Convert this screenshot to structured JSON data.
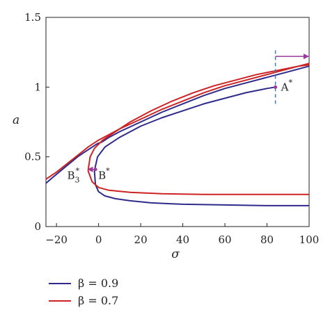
{
  "chart_data": {
    "type": "line",
    "xlabel": "σ",
    "ylabel": "a",
    "xlim": [
      -25,
      100
    ],
    "ylim": [
      0,
      1.5
    ],
    "xticks": [
      -20,
      0,
      20,
      40,
      60,
      80,
      100
    ],
    "yticks": [
      0,
      0.5,
      1,
      1.5
    ],
    "ytick_labels": [
      "0",
      "0.5",
      "1",
      "1.5"
    ],
    "grid": false,
    "legend_position": "bottom-left",
    "series": [
      {
        "name": "β = 0.9",
        "color": "#2e2a8c",
        "branches": [
          {
            "x": [
              -25,
              -22,
              -18,
              -14,
              -10,
              -7,
              -4,
              -2,
              -0.5,
              0.5,
              1.5
            ],
            "y": [
              0.31,
              0.35,
              0.4,
              0.45,
              0.5,
              0.53,
              0.56,
              0.58,
              0.595,
              0.6,
              0.605
            ]
          },
          {
            "x": [
              -1.5,
              -2,
              -0.5,
              3,
              10,
              20,
              30,
              40,
              50,
              60,
              70,
              80,
              84
            ],
            "y": [
              0.3,
              0.4,
              0.5,
              0.57,
              0.64,
              0.72,
              0.78,
              0.83,
              0.88,
              0.92,
              0.96,
              0.99,
              1.0
            ]
          },
          {
            "x": [
              -1.5,
              0,
              3,
              8,
              15,
              25,
              40,
              60,
              80,
              100
            ],
            "y": [
              0.3,
              0.25,
              0.22,
              0.2,
              0.185,
              0.17,
              0.16,
              0.155,
              0.15,
              0.15
            ]
          },
          {
            "x": [
              1.5,
              5,
              10,
              20,
              30,
              40,
              50,
              60,
              70,
              80,
              90,
              100
            ],
            "y": [
              0.605,
              0.64,
              0.68,
              0.75,
              0.82,
              0.88,
              0.94,
              0.99,
              1.03,
              1.07,
              1.11,
              1.15
            ]
          }
        ]
      },
      {
        "name": "β = 0.7",
        "color": "#cc2222",
        "branches": [
          {
            "x": [
              -25,
              -20,
              -15,
              -10,
              -5,
              0,
              5,
              10,
              20,
              30,
              40,
              50,
              60,
              70,
              80,
              90,
              100
            ],
            "y": [
              0.34,
              0.39,
              0.45,
              0.51,
              0.57,
              0.62,
              0.66,
              0.7,
              0.77,
              0.84,
              0.9,
              0.96,
              1.01,
              1.05,
              1.09,
              1.13,
              1.17
            ]
          },
          {
            "x": [
              -5,
              -4,
              -2,
              2,
              8,
              15,
              25,
              35,
              45,
              55,
              65,
              75,
              85,
              95,
              100
            ],
            "y": [
              0.4,
              0.5,
              0.56,
              0.62,
              0.68,
              0.75,
              0.83,
              0.9,
              0.96,
              1.01,
              1.05,
              1.09,
              1.12,
              1.15,
              1.16
            ]
          },
          {
            "x": [
              -5,
              -3,
              0,
              5,
              15,
              30,
              50,
              70,
              85,
              100
            ],
            "y": [
              0.4,
              0.32,
              0.28,
              0.26,
              0.245,
              0.235,
              0.23,
              0.23,
              0.23,
              0.23
            ]
          }
        ]
      }
    ],
    "annotations": {
      "a_star": {
        "label": "A",
        "sup": "*",
        "x": 84,
        "y": 1.0
      },
      "b_star": {
        "label": "B",
        "sup": "*",
        "x": -1.5,
        "y": 0.41
      },
      "b3_star": {
        "label": "B",
        "sub": "3",
        "sup": "*",
        "x": -5,
        "y": 0.41
      },
      "vline": {
        "x": 84,
        "y_range": [
          0.88,
          1.27
        ],
        "color": "#3a78c9"
      },
      "arrow_right": {
        "x_from": 84,
        "x_to": 100,
        "y": 1.22,
        "color": "#9b3a9b"
      },
      "arrow_left": {
        "x_from": -1.5,
        "x_to": -5,
        "y": 0.41,
        "color": "#9b3a9b"
      },
      "dot_color": "#9b3a9b"
    }
  }
}
